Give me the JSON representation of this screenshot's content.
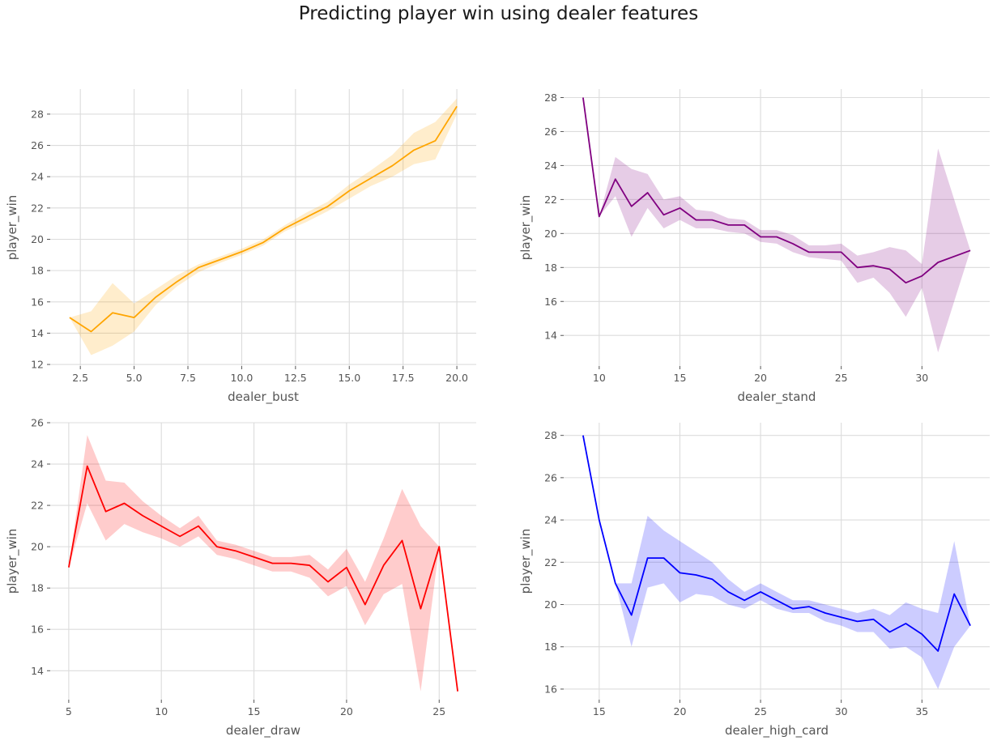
{
  "suptitle": "Predicting player win using dealer features",
  "chart_data": [
    {
      "type": "line",
      "xlabel": "dealer_bust",
      "ylabel": "player_win",
      "color": "#ffa500",
      "band_color": "#ffa500",
      "xlim": [
        1.1,
        20.9
      ],
      "ylim": [
        11.9,
        29.6
      ],
      "xticks": [
        2.5,
        5.0,
        7.5,
        10.0,
        12.5,
        15.0,
        17.5,
        20.0
      ],
      "xtick_labels": [
        "2.5",
        "5.0",
        "7.5",
        "10.0",
        "12.5",
        "15.0",
        "17.5",
        "20.0"
      ],
      "yticks": [
        12,
        14,
        16,
        18,
        20,
        22,
        24,
        26,
        28
      ],
      "ytick_labels": [
        "12",
        "14",
        "16",
        "18",
        "20",
        "22",
        "24",
        "26",
        "28"
      ],
      "x": [
        2,
        3,
        4,
        5,
        6,
        7,
        8,
        9,
        10,
        11,
        12,
        13,
        14,
        15,
        16,
        17,
        18,
        19,
        20
      ],
      "y": [
        15.0,
        14.1,
        15.3,
        15.0,
        16.3,
        17.3,
        18.2,
        18.7,
        19.2,
        19.8,
        20.7,
        21.4,
        22.1,
        23.1,
        23.9,
        24.7,
        25.7,
        26.3,
        28.5
      ],
      "lower": [
        15.0,
        12.6,
        13.2,
        14.1,
        15.8,
        17.0,
        17.9,
        18.5,
        19.0,
        19.6,
        20.5,
        21.1,
        21.8,
        22.6,
        23.4,
        24.0,
        24.8,
        25.1,
        28.0
      ],
      "upper": [
        15.0,
        15.4,
        17.2,
        15.9,
        16.8,
        17.7,
        18.4,
        18.9,
        19.4,
        20.0,
        20.9,
        21.7,
        22.4,
        23.5,
        24.4,
        25.4,
        26.8,
        27.5,
        29.0
      ]
    },
    {
      "type": "line",
      "xlabel": "dealer_stand",
      "ylabel": "player_win",
      "color": "#800080",
      "band_color": "#800080",
      "xlim": [
        7.8,
        34.2
      ],
      "ylim": [
        12.2,
        28.5
      ],
      "xticks": [
        10,
        15,
        20,
        25,
        30
      ],
      "xtick_labels": [
        "10",
        "15",
        "20",
        "25",
        "30"
      ],
      "yticks": [
        14,
        16,
        18,
        20,
        22,
        24,
        26,
        28
      ],
      "ytick_labels": [
        "14",
        "16",
        "18",
        "20",
        "22",
        "24",
        "26",
        "28"
      ],
      "x": [
        9,
        10,
        11,
        12,
        13,
        14,
        15,
        16,
        17,
        18,
        19,
        20,
        21,
        22,
        23,
        24,
        25,
        26,
        27,
        28,
        29,
        30,
        31,
        33
      ],
      "y": [
        28.0,
        21.0,
        23.2,
        21.6,
        22.4,
        21.1,
        21.5,
        20.8,
        20.8,
        20.5,
        20.5,
        19.8,
        19.8,
        19.4,
        18.9,
        18.9,
        18.9,
        18.0,
        18.1,
        17.9,
        17.1,
        17.5,
        18.3,
        19.0
      ],
      "lower": [
        28.0,
        21.0,
        22.2,
        19.8,
        21.5,
        20.3,
        20.8,
        20.3,
        20.3,
        20.1,
        20.0,
        19.5,
        19.4,
        18.9,
        18.6,
        18.5,
        18.4,
        17.1,
        17.4,
        16.5,
        15.1,
        16.8,
        13.0,
        19.0
      ],
      "upper": [
        28.0,
        21.0,
        24.5,
        23.8,
        23.5,
        22.0,
        22.2,
        21.4,
        21.3,
        20.9,
        20.8,
        20.2,
        20.2,
        19.9,
        19.3,
        19.3,
        19.4,
        18.7,
        18.9,
        19.2,
        19.0,
        18.2,
        25.0,
        19.0
      ]
    },
    {
      "type": "line",
      "xlabel": "dealer_draw",
      "ylabel": "player_win",
      "color": "#ff0000",
      "band_color": "#ff0000",
      "xlim": [
        4.0,
        27.0
      ],
      "ylim": [
        12.6,
        26.0
      ],
      "xticks": [
        5,
        10,
        15,
        20,
        25
      ],
      "xtick_labels": [
        "5",
        "10",
        "15",
        "20",
        "25"
      ],
      "yticks": [
        14,
        16,
        18,
        20,
        22,
        24,
        26
      ],
      "ytick_labels": [
        "14",
        "16",
        "18",
        "20",
        "22",
        "24",
        "26"
      ],
      "x": [
        5,
        6,
        7,
        8,
        9,
        10,
        11,
        12,
        13,
        14,
        15,
        16,
        17,
        18,
        19,
        20,
        21,
        22,
        23,
        24,
        25,
        26
      ],
      "y": [
        19.0,
        23.9,
        21.7,
        22.1,
        21.5,
        21.0,
        20.5,
        21.0,
        20.0,
        19.8,
        19.5,
        19.2,
        19.2,
        19.1,
        18.3,
        19.0,
        17.2,
        19.1,
        20.3,
        17.0,
        20.0,
        13.0
      ],
      "lower": [
        19.0,
        22.1,
        20.3,
        21.1,
        20.7,
        20.4,
        20.0,
        20.5,
        19.6,
        19.4,
        19.1,
        18.8,
        18.8,
        18.5,
        17.6,
        18.1,
        16.2,
        17.7,
        18.2,
        13.0,
        20.0,
        13.0
      ],
      "upper": [
        19.0,
        25.4,
        23.2,
        23.1,
        22.2,
        21.5,
        20.9,
        21.5,
        20.3,
        20.1,
        19.8,
        19.5,
        19.5,
        19.6,
        18.9,
        19.9,
        18.3,
        20.4,
        22.8,
        21.0,
        20.0,
        13.0
      ]
    },
    {
      "type": "line",
      "xlabel": "dealer_high_card",
      "ylabel": "player_win",
      "color": "#0000ff",
      "band_color": "#0000ff",
      "xlim": [
        12.8,
        39.2
      ],
      "ylim": [
        15.5,
        28.6
      ],
      "xticks": [
        15,
        20,
        25,
        30,
        35
      ],
      "xtick_labels": [
        "15",
        "20",
        "25",
        "30",
        "35"
      ],
      "yticks": [
        16,
        18,
        20,
        22,
        24,
        26,
        28
      ],
      "ytick_labels": [
        "16",
        "18",
        "20",
        "22",
        "24",
        "26",
        "28"
      ],
      "x": [
        14,
        15,
        16,
        17,
        18,
        19,
        20,
        21,
        22,
        23,
        24,
        25,
        26,
        27,
        28,
        29,
        30,
        31,
        32,
        33,
        34,
        35,
        36,
        37,
        38
      ],
      "y": [
        28.0,
        24.0,
        21.0,
        19.5,
        22.2,
        22.2,
        21.5,
        21.4,
        21.2,
        20.6,
        20.2,
        20.6,
        20.2,
        19.8,
        19.9,
        19.6,
        19.4,
        19.2,
        19.3,
        18.7,
        19.1,
        18.6,
        17.8,
        20.5,
        19.0
      ],
      "lower": [
        28.0,
        24.0,
        21.0,
        18.0,
        20.8,
        21.0,
        20.1,
        20.5,
        20.4,
        20.0,
        19.8,
        20.2,
        19.8,
        19.6,
        19.6,
        19.2,
        19.0,
        18.7,
        18.7,
        17.9,
        18.0,
        17.5,
        16.0,
        18.0,
        19.0
      ],
      "upper": [
        28.0,
        24.0,
        21.0,
        21.0,
        24.2,
        23.5,
        23.0,
        22.5,
        22.0,
        21.2,
        20.6,
        21.0,
        20.6,
        20.2,
        20.2,
        20.0,
        19.8,
        19.6,
        19.8,
        19.5,
        20.1,
        19.8,
        19.6,
        23.0,
        19.0
      ]
    }
  ]
}
